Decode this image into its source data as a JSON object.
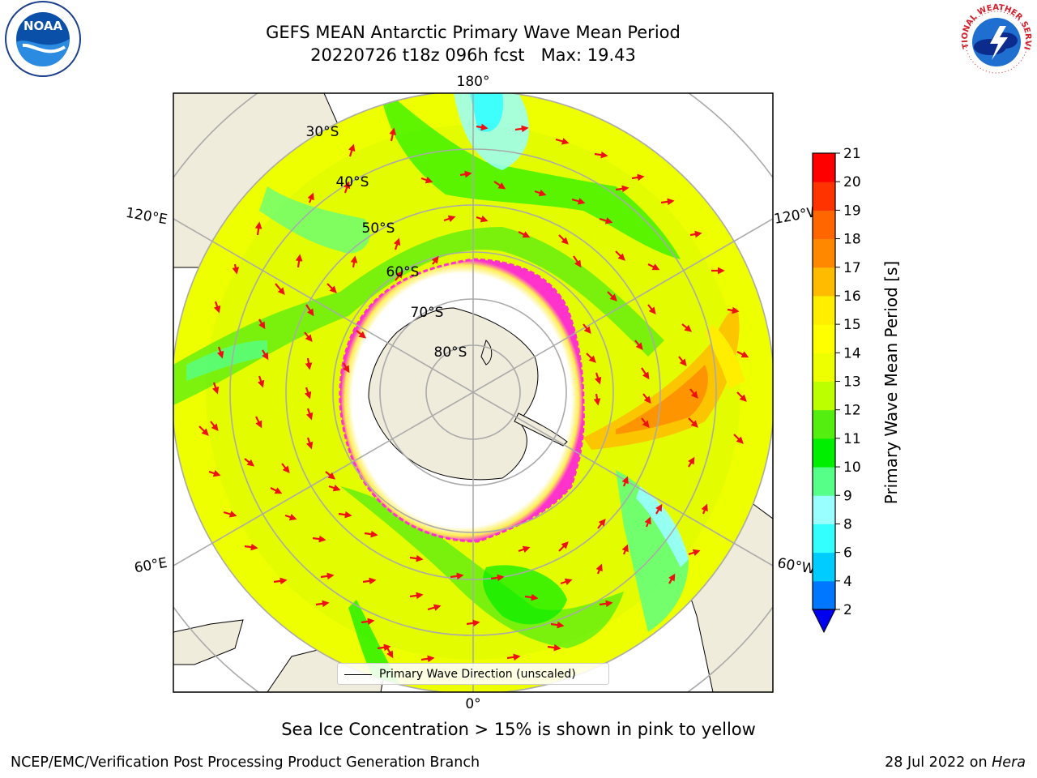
{
  "title_line1": "GEFS MEAN Antarctic Primary Wave Mean Period",
  "title_line2": "20220726 t18z 096h fcst   Max: 19.43",
  "map": {
    "projection": "south polar stereographic",
    "lon_labels": {
      "top": "180°",
      "bottom": "0°",
      "left_upper": "120°E",
      "left_lower": "60°E",
      "right_upper": "120°W",
      "right_lower": "60°W"
    },
    "lat_labels": [
      "30°S",
      "40°S",
      "50°S",
      "60°S",
      "70°S",
      "80°S"
    ],
    "ocean_colors_note": "colored by wave mean period",
    "land_color": "#efecdc",
    "sea_ice_color_range": [
      "#ff33cc",
      "#ffff66"
    ],
    "arrow_color": "#ee1111"
  },
  "legend": {
    "line_label": "Primary Wave Direction (unscaled)"
  },
  "colorbar": {
    "label": "Primary Wave Mean Period [s]",
    "ticks": [
      "21",
      "20",
      "19",
      "18",
      "17",
      "16",
      "15",
      "14",
      "13",
      "12",
      "11",
      "10",
      "9",
      "8",
      "6",
      "4",
      "2"
    ],
    "colors_bottom_to_top": [
      "#0077ff",
      "#00ccff",
      "#33ffff",
      "#99ffff",
      "#55ff88",
      "#00ee00",
      "#55ee11",
      "#bbff00",
      "#eeff00",
      "#ffff00",
      "#ffee00",
      "#ffbb00",
      "#ff8800",
      "#ff6600",
      "#ff3300",
      "#ff0000"
    ],
    "under_color": "#0000ee"
  },
  "caption": "Sea Ice Concentration > 15% is shown in pink to yellow",
  "footer_left": "NCEP/EMC/Verification Post Processing Product Generation Branch",
  "footer_right_prefix": "28 Jul 2022 on ",
  "footer_right_host": "Hera",
  "logos": {
    "noaa_text": "NOAA",
    "nws_text": "NATIONAL WEATHER SERVICE"
  }
}
